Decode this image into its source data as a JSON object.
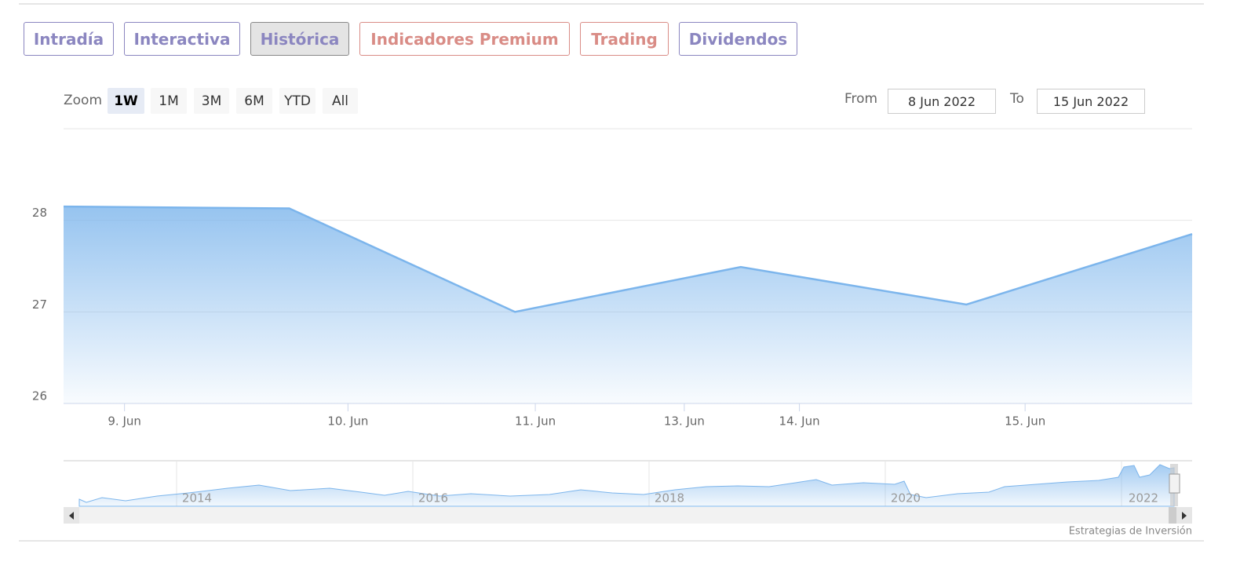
{
  "tabs": [
    "Intradía",
    "Interactiva",
    "Histórica",
    "Indicadores Premium",
    "Trading",
    "Dividendos"
  ],
  "zoom": {
    "label": "Zoom",
    "buttons": [
      "1W",
      "1M",
      "3M",
      "6M",
      "YTD",
      "All"
    ]
  },
  "range": {
    "from_label": "From",
    "from": "8 Jun 2022",
    "to_label": "To",
    "to": "15 Jun 2022"
  },
  "chart_data": {
    "type": "area",
    "color": "#7cb5ec",
    "values": [
      28.15,
      28.13,
      27.0,
      27.49,
      27.08,
      27.85
    ],
    "ylim": [
      26,
      29
    ],
    "yticks": [
      26,
      27,
      28
    ],
    "grid": true,
    "xticks": [
      {
        "value": 0.27,
        "label": "9. Jun"
      },
      {
        "value": 1.26,
        "label": "10. Jun"
      },
      {
        "value": 2.09,
        "label": "11. Jun"
      },
      {
        "value": 2.75,
        "label": "13. Jun"
      },
      {
        "value": 3.26,
        "label": "14. Jun"
      },
      {
        "value": 4.26,
        "label": "15. Jun"
      }
    ],
    "navigator_labels": [
      "2014",
      "2016",
      "2018",
      "2020",
      "2022"
    ]
  },
  "credits": "Estrategias de Inversión"
}
